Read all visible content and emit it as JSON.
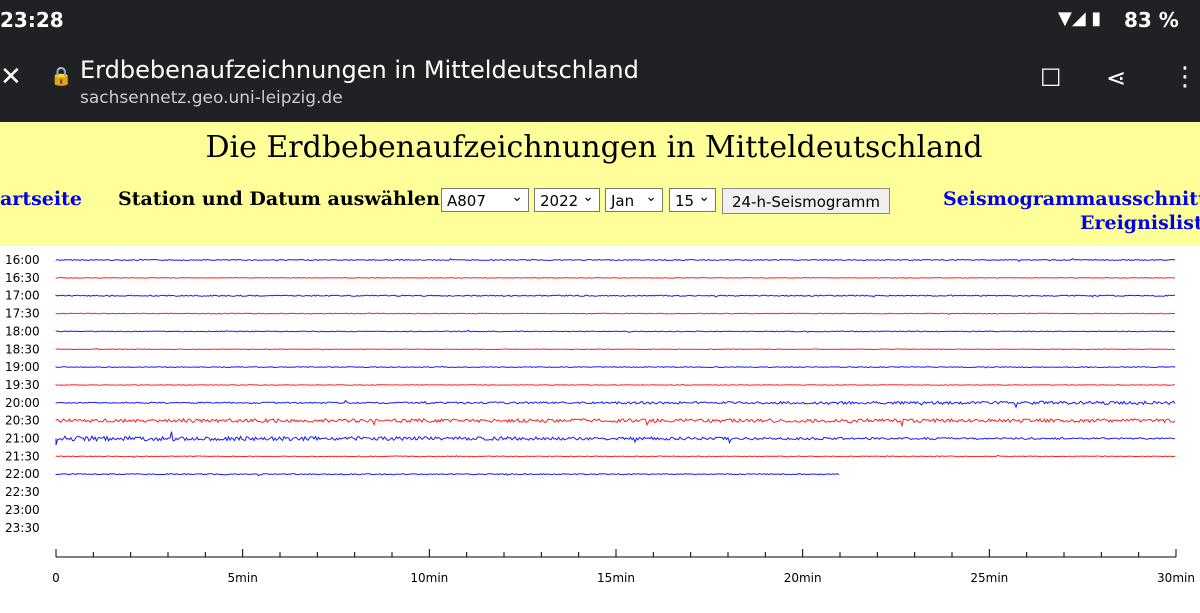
{
  "status_bar": {
    "time": "23:28",
    "battery": "83 %"
  },
  "browser": {
    "title": "Erdbebenaufzeichnungen in Mitteldeutschland",
    "url": "sachsennetz.geo.uni-leipzig.de"
  },
  "page": {
    "heading": "Die Erdbebenaufzeichnungen in Mitteldeutschland",
    "left_link": "artseite",
    "select_label": "Station und Datum auswählen:",
    "selects": [
      "A807",
      "2022",
      "Jan",
      "15"
    ],
    "button": "24-h-Seismogramm",
    "right_links": [
      "Seismogrammausschnitte",
      "Ereignisliste"
    ]
  },
  "seismogram": {
    "rows": [
      "16:00",
      "16:30",
      "17:00",
      "17:30",
      "18:00",
      "18:30",
      "19:00",
      "19:30",
      "20:00",
      "20:30",
      "21:00",
      "21:30",
      "22:00",
      "22:30",
      "23:00",
      "23:30"
    ],
    "x_labels": [
      "0",
      "5min",
      "10min",
      "15min",
      "20min",
      "25min",
      "30min"
    ]
  }
}
